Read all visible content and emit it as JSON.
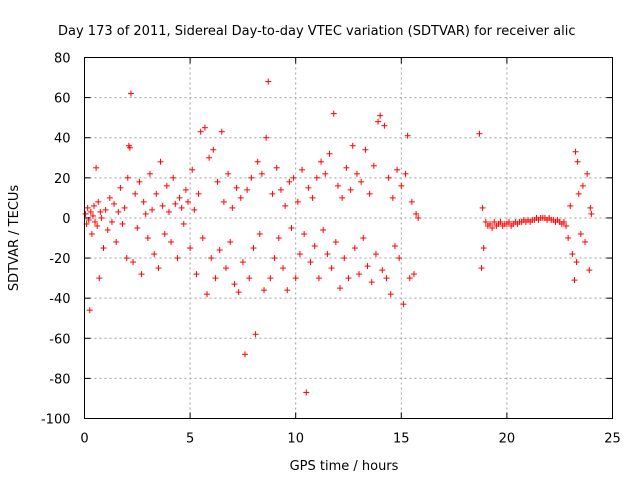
{
  "chart_data": {
    "type": "scatter",
    "title": "Day 173 of 2011, Sidereal Day-to-day VTEC variation (SDTVAR) for receiver alic",
    "xlabel": "GPS time / hours",
    "ylabel": "SDTVAR / TECUs",
    "xlim": [
      0,
      25
    ],
    "ylim": [
      -100,
      80
    ],
    "xticks": [
      "0",
      "5",
      "10",
      "15",
      "20",
      "25"
    ],
    "yticks": [
      "80",
      "60",
      "40",
      "20",
      "0",
      "-20",
      "-40",
      "-60",
      "-80",
      "-100"
    ],
    "grid": true,
    "marker": "+",
    "color": "#ff0000",
    "series": [
      {
        "name": "SDTVAR",
        "points": [
          [
            0.05,
            2
          ],
          [
            0.1,
            -3
          ],
          [
            0.15,
            5
          ],
          [
            0.2,
            -1
          ],
          [
            0.25,
            -46
          ],
          [
            0.3,
            3
          ],
          [
            0.35,
            -8
          ],
          [
            0.4,
            1
          ],
          [
            0.45,
            6
          ],
          [
            0.5,
            -2
          ],
          [
            0.55,
            25
          ],
          [
            0.6,
            -4
          ],
          [
            0.65,
            8
          ],
          [
            0.7,
            -30
          ],
          [
            0.75,
            3
          ],
          [
            0.8,
            0
          ],
          [
            0.9,
            -15
          ],
          [
            1.0,
            4
          ],
          [
            1.1,
            -6
          ],
          [
            1.2,
            10
          ],
          [
            1.3,
            -2
          ],
          [
            1.4,
            7
          ],
          [
            1.5,
            -12
          ],
          [
            1.6,
            3
          ],
          [
            1.7,
            15
          ],
          [
            1.8,
            -3
          ],
          [
            1.9,
            5
          ],
          [
            2.0,
            -20
          ],
          [
            2.05,
            20
          ],
          [
            2.1,
            36
          ],
          [
            2.15,
            35
          ],
          [
            2.2,
            62
          ],
          [
            2.3,
            -22
          ],
          [
            2.4,
            12
          ],
          [
            2.5,
            -5
          ],
          [
            2.6,
            18
          ],
          [
            2.7,
            -28
          ],
          [
            2.8,
            8
          ],
          [
            2.9,
            2
          ],
          [
            3.0,
            -10
          ],
          [
            3.1,
            22
          ],
          [
            3.2,
            4
          ],
          [
            3.3,
            -18
          ],
          [
            3.4,
            12
          ],
          [
            3.5,
            -25
          ],
          [
            3.6,
            28
          ],
          [
            3.7,
            6
          ],
          [
            3.8,
            -8
          ],
          [
            3.9,
            16
          ],
          [
            4.0,
            3
          ],
          [
            4.1,
            -12
          ],
          [
            4.2,
            20
          ],
          [
            4.3,
            7
          ],
          [
            4.4,
            -20
          ],
          [
            4.5,
            10
          ],
          [
            4.6,
            5
          ],
          [
            4.7,
            -3
          ],
          [
            4.8,
            14
          ],
          [
            4.9,
            8
          ],
          [
            5.0,
            -15
          ],
          [
            5.1,
            24
          ],
          [
            5.2,
            4
          ],
          [
            5.3,
            -28
          ],
          [
            5.4,
            12
          ],
          [
            5.5,
            43
          ],
          [
            5.6,
            -10
          ],
          [
            5.7,
            45
          ],
          [
            5.8,
            -38
          ],
          [
            5.9,
            30
          ],
          [
            6.0,
            -20
          ],
          [
            6.1,
            34
          ],
          [
            6.2,
            -30
          ],
          [
            6.3,
            18
          ],
          [
            6.4,
            -16
          ],
          [
            6.5,
            43
          ],
          [
            6.6,
            8
          ],
          [
            6.7,
            -25
          ],
          [
            6.8,
            22
          ],
          [
            6.9,
            -12
          ],
          [
            7.0,
            5
          ],
          [
            7.1,
            -33
          ],
          [
            7.2,
            15
          ],
          [
            7.3,
            -37
          ],
          [
            7.4,
            10
          ],
          [
            7.5,
            -22
          ],
          [
            7.6,
            -68
          ],
          [
            7.7,
            14
          ],
          [
            7.8,
            -30
          ],
          [
            7.9,
            20
          ],
          [
            8.0,
            -15
          ],
          [
            8.1,
            -58
          ],
          [
            8.2,
            28
          ],
          [
            8.3,
            -8
          ],
          [
            8.4,
            22
          ],
          [
            8.5,
            -36
          ],
          [
            8.6,
            40
          ],
          [
            8.7,
            68
          ],
          [
            8.8,
            -30
          ],
          [
            8.9,
            12
          ],
          [
            9.0,
            -20
          ],
          [
            9.1,
            25
          ],
          [
            9.2,
            -10
          ],
          [
            9.3,
            14
          ],
          [
            9.4,
            -25
          ],
          [
            9.5,
            6
          ],
          [
            9.6,
            -36
          ],
          [
            9.7,
            18
          ],
          [
            9.8,
            -5
          ],
          [
            9.9,
            20
          ],
          [
            10.0,
            -30
          ],
          [
            10.1,
            8
          ],
          [
            10.2,
            -18
          ],
          [
            10.3,
            24
          ],
          [
            10.4,
            -8
          ],
          [
            10.5,
            -87
          ],
          [
            10.6,
            15
          ],
          [
            10.7,
            -22
          ],
          [
            10.8,
            10
          ],
          [
            10.9,
            -14
          ],
          [
            11.0,
            20
          ],
          [
            11.1,
            -30
          ],
          [
            11.2,
            28
          ],
          [
            11.3,
            -6
          ],
          [
            11.4,
            22
          ],
          [
            11.5,
            -18
          ],
          [
            11.6,
            32
          ],
          [
            11.7,
            -25
          ],
          [
            11.8,
            52
          ],
          [
            11.9,
            -12
          ],
          [
            12.0,
            16
          ],
          [
            12.1,
            -35
          ],
          [
            12.2,
            10
          ],
          [
            12.3,
            -20
          ],
          [
            12.4,
            25
          ],
          [
            12.5,
            -30
          ],
          [
            12.6,
            14
          ],
          [
            12.7,
            36
          ],
          [
            12.8,
            -15
          ],
          [
            12.9,
            22
          ],
          [
            13.0,
            -28
          ],
          [
            13.1,
            18
          ],
          [
            13.2,
            -10
          ],
          [
            13.3,
            34
          ],
          [
            13.4,
            -24
          ],
          [
            13.5,
            12
          ],
          [
            13.6,
            -32
          ],
          [
            13.7,
            26
          ],
          [
            13.8,
            -18
          ],
          [
            13.9,
            48
          ],
          [
            14.0,
            51
          ],
          [
            14.1,
            -26
          ],
          [
            14.2,
            46
          ],
          [
            14.3,
            -30
          ],
          [
            14.4,
            20
          ],
          [
            14.5,
            -38
          ],
          [
            14.6,
            10
          ],
          [
            14.7,
            -14
          ],
          [
            14.8,
            24
          ],
          [
            14.9,
            -20
          ],
          [
            15.0,
            16
          ],
          [
            15.1,
            -43
          ],
          [
            15.2,
            22
          ],
          [
            15.3,
            41
          ],
          [
            15.4,
            -30
          ],
          [
            15.5,
            8
          ],
          [
            15.6,
            -28
          ],
          [
            15.7,
            2
          ],
          [
            15.8,
            0
          ],
          [
            18.7,
            42
          ],
          [
            18.8,
            -25
          ],
          [
            18.85,
            5
          ],
          [
            18.9,
            -15
          ],
          [
            19.0,
            -2
          ],
          [
            19.1,
            -4
          ],
          [
            19.2,
            -3
          ],
          [
            19.3,
            -5
          ],
          [
            19.4,
            -2
          ],
          [
            19.5,
            -4
          ],
          [
            19.6,
            -3
          ],
          [
            19.7,
            -2
          ],
          [
            19.8,
            -4
          ],
          [
            19.9,
            -3
          ],
          [
            20.0,
            -3
          ],
          [
            20.1,
            -2
          ],
          [
            20.2,
            -4
          ],
          [
            20.3,
            -3
          ],
          [
            20.4,
            -2
          ],
          [
            20.5,
            -3
          ],
          [
            20.6,
            -2
          ],
          [
            20.7,
            -2
          ],
          [
            20.8,
            -1
          ],
          [
            20.9,
            -2
          ],
          [
            21.0,
            -1
          ],
          [
            21.1,
            -2
          ],
          [
            21.2,
            -1
          ],
          [
            21.3,
            -1
          ],
          [
            21.4,
            0
          ],
          [
            21.5,
            -1
          ],
          [
            21.6,
            0
          ],
          [
            21.7,
            0
          ],
          [
            21.8,
            0
          ],
          [
            21.9,
            -1
          ],
          [
            22.0,
            0
          ],
          [
            22.1,
            -1
          ],
          [
            22.2,
            -1
          ],
          [
            22.3,
            -2
          ],
          [
            22.4,
            -1
          ],
          [
            22.5,
            -2
          ],
          [
            22.6,
            -3
          ],
          [
            22.7,
            -2
          ],
          [
            22.8,
            -4
          ],
          [
            22.9,
            -10
          ],
          [
            23.0,
            6
          ],
          [
            23.1,
            -18
          ],
          [
            23.2,
            -31
          ],
          [
            23.25,
            33
          ],
          [
            23.3,
            -22
          ],
          [
            23.35,
            28
          ],
          [
            23.4,
            12
          ],
          [
            23.5,
            -8
          ],
          [
            23.6,
            16
          ],
          [
            23.7,
            -12
          ],
          [
            23.8,
            22
          ],
          [
            23.9,
            -26
          ],
          [
            23.95,
            5
          ],
          [
            24.0,
            2
          ]
        ]
      }
    ]
  }
}
